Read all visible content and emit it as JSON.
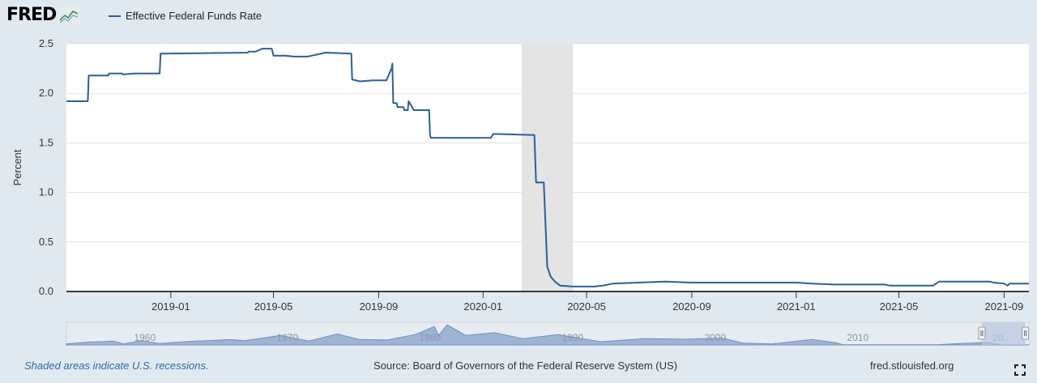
{
  "header": {
    "logo_text": "FRED",
    "logo_icon": "line-graph-icon",
    "legend_label": "Effective Federal Funds Rate"
  },
  "colors": {
    "series": "#2d5e9a",
    "recession": "#e4e4e4",
    "background": "#e1e9f0",
    "navigator_fill": "#9fb4d4",
    "navigator_selection": "#b6c7df",
    "footer_link": "#2c6aa6"
  },
  "chart_data": {
    "type": "line",
    "ylabel": "Percent",
    "xlabel": "",
    "ylim": [
      0,
      2.5
    ],
    "xlim": [
      "2018-09-01",
      "2021-09-30"
    ],
    "y_ticks": [
      "0.0",
      "0.5",
      "1.0",
      "1.5",
      "2.0",
      "2.5"
    ],
    "x_ticks": [
      {
        "date": "2019-01-01",
        "label": "2019-01"
      },
      {
        "date": "2019-05-01",
        "label": "2019-05"
      },
      {
        "date": "2019-09-01",
        "label": "2019-09"
      },
      {
        "date": "2020-01-01",
        "label": "2020-01"
      },
      {
        "date": "2020-05-01",
        "label": "2020-05"
      },
      {
        "date": "2020-09-01",
        "label": "2020-09"
      },
      {
        "date": "2021-01-01",
        "label": "2021-01"
      },
      {
        "date": "2021-05-01",
        "label": "2021-05"
      },
      {
        "date": "2021-09-01",
        "label": "2021-09"
      }
    ],
    "recessions": [
      {
        "start": "2020-02-15",
        "end": "2020-04-15"
      }
    ],
    "grid": true,
    "legend_position": "top",
    "series": [
      {
        "name": "Effective Federal Funds Rate",
        "points": [
          [
            "2018-09-01",
            1.92
          ],
          [
            "2018-09-26",
            1.92
          ],
          [
            "2018-09-27",
            2.18
          ],
          [
            "2018-10-20",
            2.18
          ],
          [
            "2018-10-21",
            2.2
          ],
          [
            "2018-11-05",
            2.2
          ],
          [
            "2018-11-06",
            2.19
          ],
          [
            "2018-11-20",
            2.2
          ],
          [
            "2018-12-10",
            2.2
          ],
          [
            "2018-12-19",
            2.2
          ],
          [
            "2018-12-20",
            2.4
          ],
          [
            "2019-04-01",
            2.41
          ],
          [
            "2019-04-02",
            2.42
          ],
          [
            "2019-04-10",
            2.42
          ],
          [
            "2019-04-18",
            2.45
          ],
          [
            "2019-04-29",
            2.45
          ],
          [
            "2019-05-01",
            2.38
          ],
          [
            "2019-05-15",
            2.38
          ],
          [
            "2019-05-25",
            2.37
          ],
          [
            "2019-06-10",
            2.37
          ],
          [
            "2019-06-20",
            2.39
          ],
          [
            "2019-07-01",
            2.41
          ],
          [
            "2019-07-31",
            2.4
          ],
          [
            "2019-08-01",
            2.14
          ],
          [
            "2019-08-10",
            2.12
          ],
          [
            "2019-08-25",
            2.13
          ],
          [
            "2019-09-10",
            2.13
          ],
          [
            "2019-09-16",
            2.25
          ],
          [
            "2019-09-17",
            2.3
          ],
          [
            "2019-09-18",
            1.9
          ],
          [
            "2019-09-22",
            1.9
          ],
          [
            "2019-09-23",
            1.86
          ],
          [
            "2019-09-30",
            1.86
          ],
          [
            "2019-10-01",
            1.83
          ],
          [
            "2019-10-05",
            1.83
          ],
          [
            "2019-10-06",
            1.92
          ],
          [
            "2019-10-12",
            1.83
          ],
          [
            "2019-10-30",
            1.83
          ],
          [
            "2019-10-31",
            1.58
          ],
          [
            "2019-11-01",
            1.55
          ],
          [
            "2019-12-01",
            1.55
          ],
          [
            "2019-12-31",
            1.55
          ],
          [
            "2020-01-01",
            1.55
          ],
          [
            "2020-01-10",
            1.55
          ],
          [
            "2020-01-13",
            1.59
          ],
          [
            "2020-02-25",
            1.58
          ],
          [
            "2020-03-01",
            1.58
          ],
          [
            "2020-03-03",
            1.1
          ],
          [
            "2020-03-10",
            1.1
          ],
          [
            "2020-03-12",
            1.1
          ],
          [
            "2020-03-16",
            0.25
          ],
          [
            "2020-03-20",
            0.15
          ],
          [
            "2020-03-25",
            0.1
          ],
          [
            "2020-03-31",
            0.06
          ],
          [
            "2020-04-15",
            0.05
          ],
          [
            "2020-05-10",
            0.05
          ],
          [
            "2020-05-20",
            0.06
          ],
          [
            "2020-06-01",
            0.08
          ],
          [
            "2020-07-01",
            0.09
          ],
          [
            "2020-08-01",
            0.1
          ],
          [
            "2020-09-01",
            0.09
          ],
          [
            "2020-10-15",
            0.09
          ],
          [
            "2020-12-01",
            0.09
          ],
          [
            "2021-01-01",
            0.09
          ],
          [
            "2021-01-20",
            0.08
          ],
          [
            "2021-02-15",
            0.07
          ],
          [
            "2021-03-15",
            0.07
          ],
          [
            "2021-04-15",
            0.07
          ],
          [
            "2021-04-20",
            0.06
          ],
          [
            "2021-06-10",
            0.06
          ],
          [
            "2021-06-17",
            0.1
          ],
          [
            "2021-07-15",
            0.1
          ],
          [
            "2021-08-15",
            0.1
          ],
          [
            "2021-08-20",
            0.09
          ],
          [
            "2021-09-01",
            0.08
          ],
          [
            "2021-09-05",
            0.06
          ],
          [
            "2021-09-08",
            0.08
          ],
          [
            "2021-09-30",
            0.08
          ]
        ]
      }
    ],
    "navigator": {
      "x_tick_labels": [
        "1960",
        "1970",
        "1980",
        "1990",
        "2000",
        "2010",
        "20.."
      ],
      "x_tick_years": [
        1960,
        1970,
        1980,
        1990,
        2000,
        2010,
        2020
      ],
      "range_years": [
        1954.5,
        2022
      ],
      "selection_years": [
        2018.7,
        2021.75
      ],
      "profile": [
        [
          1954.5,
          1.0
        ],
        [
          1956,
          2.7
        ],
        [
          1957.8,
          3.5
        ],
        [
          1958.5,
          1.0
        ],
        [
          1959.8,
          4.0
        ],
        [
          1961,
          1.3
        ],
        [
          1963,
          3.2
        ],
        [
          1966,
          5.1
        ],
        [
          1967,
          4.0
        ],
        [
          1969.5,
          9.0
        ],
        [
          1971.5,
          3.7
        ],
        [
          1973.5,
          10.5
        ],
        [
          1975,
          5.2
        ],
        [
          1977,
          4.7
        ],
        [
          1979,
          10.0
        ],
        [
          1980.3,
          17.6
        ],
        [
          1980.6,
          9.0
        ],
        [
          1981.2,
          19.1
        ],
        [
          1982.5,
          9.0
        ],
        [
          1984.5,
          11.6
        ],
        [
          1986.5,
          6.0
        ],
        [
          1989,
          9.8
        ],
        [
          1992,
          3.0
        ],
        [
          1995,
          6.0
        ],
        [
          1998,
          5.5
        ],
        [
          2000.5,
          6.5
        ],
        [
          2002,
          1.7
        ],
        [
          2004,
          1.0
        ],
        [
          2006.8,
          5.25
        ],
        [
          2008.5,
          2.0
        ],
        [
          2009,
          0.15
        ],
        [
          2015.5,
          0.12
        ],
        [
          2017,
          1.2
        ],
        [
          2019,
          2.4
        ],
        [
          2020.2,
          0.1
        ],
        [
          2022,
          0.1
        ]
      ]
    }
  },
  "footer": {
    "recession_note": "Shaded areas indicate U.S. recessions.",
    "source": "Source: Board of Governors of the Federal Reserve System (US)",
    "url": "fred.stlouisfed.org",
    "fullscreen_icon": "fullscreen-icon"
  }
}
